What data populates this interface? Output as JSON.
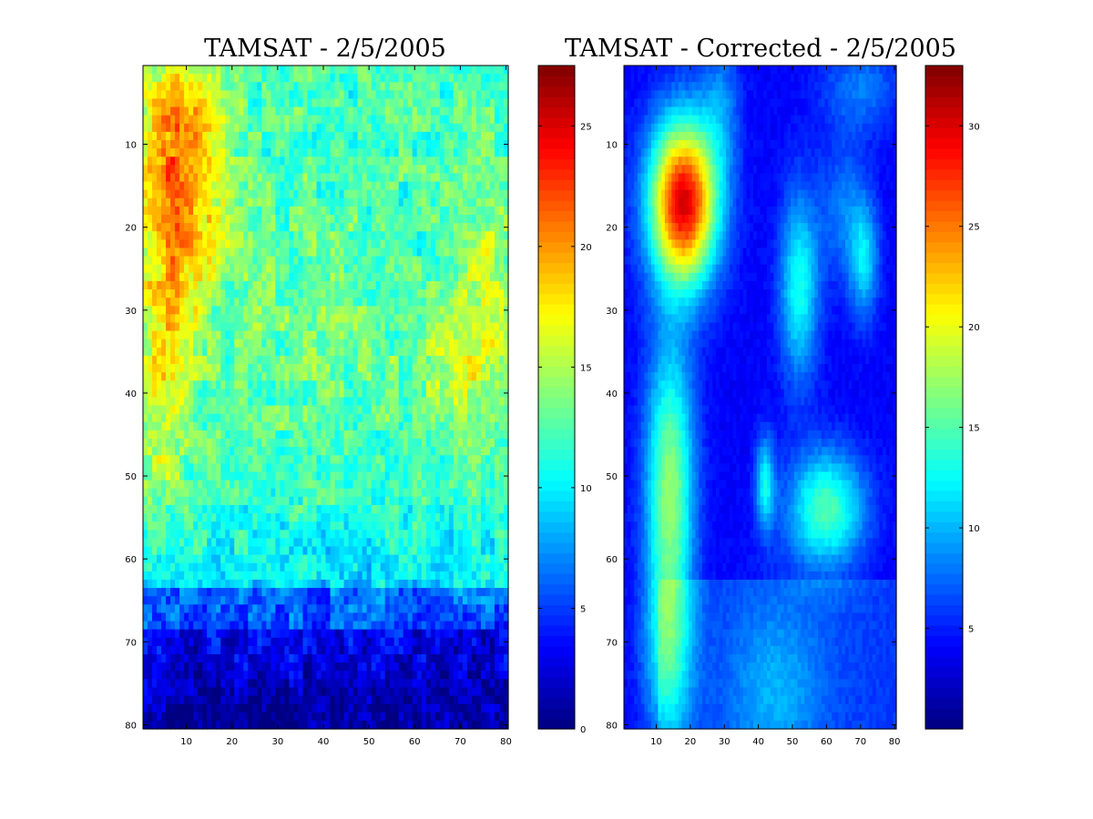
{
  "chart_data": [
    {
      "type": "heatmap",
      "title": "TAMSAT - 2/5/2005",
      "x_ticks": [
        10,
        20,
        30,
        40,
        50,
        60,
        70,
        80
      ],
      "y_ticks": [
        10,
        20,
        30,
        40,
        50,
        60,
        70,
        80
      ],
      "xlim": [
        0.5,
        80.5
      ],
      "ylim": [
        0.5,
        80.5
      ],
      "y_reversed": true,
      "colormap": "jet",
      "colorbar": {
        "ticks": [
          0,
          5,
          10,
          15,
          20,
          25
        ],
        "range": [
          0,
          27.5
        ]
      },
      "grid_resolution": 80,
      "features": [
        {
          "x": 9,
          "y": 9,
          "sx": 7,
          "sy": 9,
          "amp": 6.5
        },
        {
          "x": 8,
          "y": 20,
          "sx": 6,
          "sy": 10,
          "amp": 5
        },
        {
          "x": 6,
          "y": 32,
          "sx": 5,
          "sy": 8,
          "amp": 3
        },
        {
          "x": 5,
          "y": 46,
          "sx": 4,
          "sy": 8,
          "amp": 3
        },
        {
          "x": 76,
          "y": 28,
          "sx": 5,
          "sy": 10,
          "amp": 3.5
        },
        {
          "x": 68,
          "y": 37,
          "sx": 6,
          "sy": 5,
          "amp": 3
        },
        {
          "x": 38,
          "y": 32,
          "sx": 14,
          "sy": 10,
          "amp": 1.5
        }
      ]
    },
    {
      "type": "heatmap",
      "title": "TAMSAT - Corrected - 2/5/2005",
      "x_ticks": [
        10,
        20,
        30,
        40,
        50,
        60,
        70,
        80
      ],
      "y_ticks": [
        10,
        20,
        30,
        40,
        50,
        60,
        70,
        80
      ],
      "xlim": [
        0.5,
        80.5
      ],
      "ylim": [
        0.5,
        80.5
      ],
      "y_reversed": true,
      "colormap": "jet",
      "colorbar": {
        "ticks": [
          5,
          10,
          15,
          20,
          25,
          30
        ],
        "range": [
          0,
          33
        ]
      },
      "grid_resolution": 80,
      "features": [
        {
          "x": 18,
          "y": 17,
          "sx": 7,
          "sy": 7,
          "amp": 26
        },
        {
          "x": 14,
          "y": 51,
          "sx": 5,
          "sy": 12,
          "amp": 13
        },
        {
          "x": 13,
          "y": 72,
          "sx": 5,
          "sy": 8,
          "amp": 7
        },
        {
          "x": 60,
          "y": 54,
          "sx": 8,
          "sy": 5,
          "amp": 11
        },
        {
          "x": 52,
          "y": 27,
          "sx": 4,
          "sy": 8,
          "amp": 9
        },
        {
          "x": 71,
          "y": 24,
          "sx": 3,
          "sy": 5,
          "amp": 7
        },
        {
          "x": 42,
          "y": 51,
          "sx": 2,
          "sy": 4,
          "amp": 8
        },
        {
          "x": 65,
          "y": 18,
          "sx": 5,
          "sy": 6,
          "amp": 4
        },
        {
          "x": 70,
          "y": 3,
          "sx": 8,
          "sy": 4,
          "amp": 4
        },
        {
          "x": 45,
          "y": 76,
          "sx": 10,
          "sy": 8,
          "amp": 4
        },
        {
          "x": 29,
          "y": 5,
          "sx": 4,
          "sy": 6,
          "amp": 4
        }
      ]
    }
  ]
}
